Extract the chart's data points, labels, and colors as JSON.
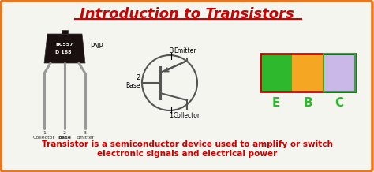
{
  "title": "Introduction to Transistors",
  "title_color": "#cc0000",
  "title_fontsize": 13,
  "bg_color": "#f5f5f0",
  "border_color": "#e87722",
  "subtitle_line1": "Transistor is a semiconductor device used to amplify or switch",
  "subtitle_line2": "electronic signals and electrical power",
  "subtitle_color": "#cc0000",
  "subtitle_fontsize": 7.5,
  "pnp_label": "PNP",
  "transistor_label_line1": "BC557",
  "transistor_label_line2": "D 168",
  "ebc_labels": [
    "E",
    "B",
    "C"
  ],
  "ebc_colors": [
    "#2db82d",
    "#f5a623",
    "#c9b8e8"
  ],
  "ebc_border_color": "#cc0000",
  "ebc_label_color": "#2db82d",
  "transistor_body_color": "#1a1010",
  "transistor_leg_color": "#999999",
  "annotation_color": "#000000",
  "small_label_color": "#333333",
  "schematic_color": "#555555"
}
